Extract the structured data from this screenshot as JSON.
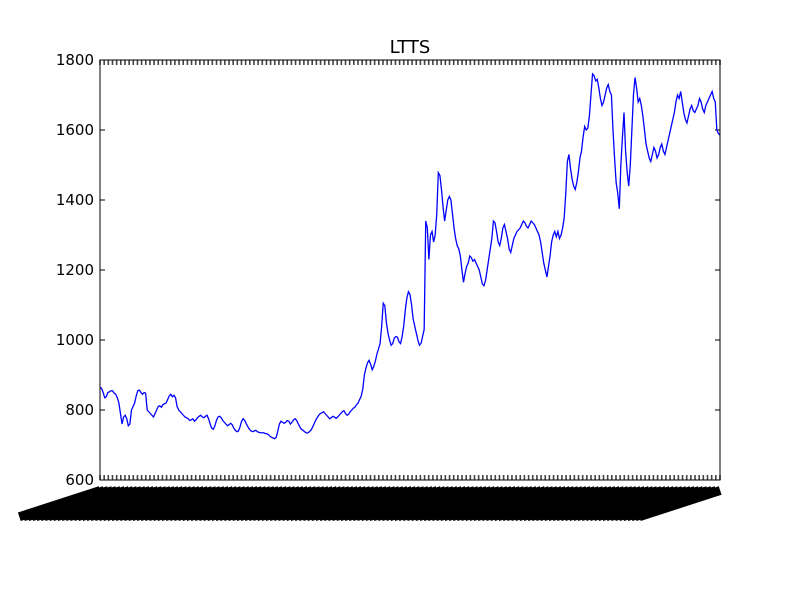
{
  "chart_data": {
    "type": "line",
    "title": "LTTS",
    "xlabel": "",
    "ylabel": "",
    "ylim": [
      600,
      1800
    ],
    "yticks": [
      600,
      800,
      1000,
      1200,
      1400,
      1600,
      1800
    ],
    "grid": false,
    "legend": "none",
    "series_color": "#0000ff",
    "x_tick_labels_note_free": true,
    "series": [
      {
        "values": [
          865,
          862,
          850,
          835,
          838,
          850,
          852,
          855,
          855,
          848,
          845,
          835,
          820,
          790,
          760,
          780,
          785,
          775,
          755,
          760,
          800,
          810,
          820,
          840,
          855,
          857,
          850,
          845,
          850,
          848,
          800,
          795,
          790,
          785,
          780,
          790,
          800,
          810,
          812,
          808,
          815,
          818,
          820,
          830,
          840,
          845,
          838,
          842,
          835,
          810,
          800,
          795,
          790,
          785,
          780,
          778,
          775,
          770,
          772,
          775,
          768,
          772,
          778,
          782,
          785,
          780,
          778,
          782,
          785,
          775,
          760,
          748,
          745,
          755,
          770,
          780,
          782,
          778,
          770,
          765,
          760,
          755,
          758,
          762,
          758,
          748,
          742,
          738,
          740,
          752,
          768,
          775,
          770,
          760,
          752,
          745,
          740,
          738,
          740,
          742,
          738,
          736,
          735,
          735,
          735,
          733,
          732,
          730,
          725,
          722,
          720,
          718,
          722,
          740,
          760,
          768,
          765,
          762,
          765,
          770,
          768,
          760,
          765,
          772,
          775,
          770,
          760,
          752,
          745,
          742,
          738,
          735,
          734,
          738,
          742,
          750,
          760,
          770,
          778,
          785,
          790,
          792,
          795,
          790,
          785,
          780,
          775,
          778,
          782,
          780,
          776,
          780,
          785,
          790,
          795,
          798,
          790,
          785,
          788,
          795,
          800,
          805,
          808,
          815,
          820,
          830,
          840,
          860,
          900,
          920,
          935,
          942,
          930,
          915,
          925,
          940,
          960,
          975,
          990,
          1040,
          1105,
          1098,
          1050,
          1020,
          1000,
          985,
          990,
          1005,
          1010,
          1008,
          995,
          990,
          1010,
          1040,
          1085,
          1120,
          1138,
          1130,
          1100,
          1060,
          1040,
          1020,
          1000,
          985,
          990,
          1010,
          1030,
          1340,
          1320,
          1230,
          1300,
          1310,
          1280,
          1300,
          1360,
          1478,
          1470,
          1430,
          1380,
          1340,
          1370,
          1400,
          1410,
          1400,
          1360,
          1320,
          1290,
          1270,
          1260,
          1240,
          1200,
          1165,
          1190,
          1210,
          1220,
          1240,
          1235,
          1225,
          1230,
          1220,
          1210,
          1200,
          1180,
          1160,
          1155,
          1170,
          1200,
          1230,
          1260,
          1290,
          1340,
          1335,
          1310,
          1280,
          1270,
          1290,
          1320,
          1330,
          1310,
          1290,
          1260,
          1250,
          1270,
          1290,
          1300,
          1310,
          1315,
          1320,
          1330,
          1340,
          1335,
          1325,
          1320,
          1330,
          1340,
          1335,
          1330,
          1320,
          1310,
          1300,
          1280,
          1250,
          1220,
          1200,
          1180,
          1210,
          1240,
          1280,
          1300,
          1310,
          1295,
          1310,
          1290,
          1300,
          1320,
          1350,
          1420,
          1510,
          1530,
          1490,
          1460,
          1440,
          1430,
          1450,
          1480,
          1520,
          1540,
          1580,
          1610,
          1600,
          1605,
          1640,
          1700,
          1760,
          1755,
          1740,
          1745,
          1720,
          1690,
          1670,
          1680,
          1700,
          1720,
          1730,
          1710,
          1700,
          1600,
          1520,
          1450,
          1420,
          1375,
          1500,
          1580,
          1650,
          1540,
          1480,
          1440,
          1500,
          1600,
          1700,
          1750,
          1720,
          1680,
          1690,
          1670,
          1640,
          1600,
          1560,
          1540,
          1520,
          1510,
          1530,
          1550,
          1540,
          1520,
          1530,
          1550,
          1560,
          1540,
          1530,
          1550,
          1570,
          1590,
          1610,
          1630,
          1650,
          1680,
          1700,
          1690,
          1710,
          1680,
          1650,
          1630,
          1620,
          1640,
          1660,
          1670,
          1655,
          1650,
          1660,
          1670,
          1690,
          1680,
          1660,
          1650,
          1670,
          1680,
          1690,
          1700,
          1710,
          1690,
          1680,
          1600,
          1590,
          1585
        ]
      }
    ]
  }
}
